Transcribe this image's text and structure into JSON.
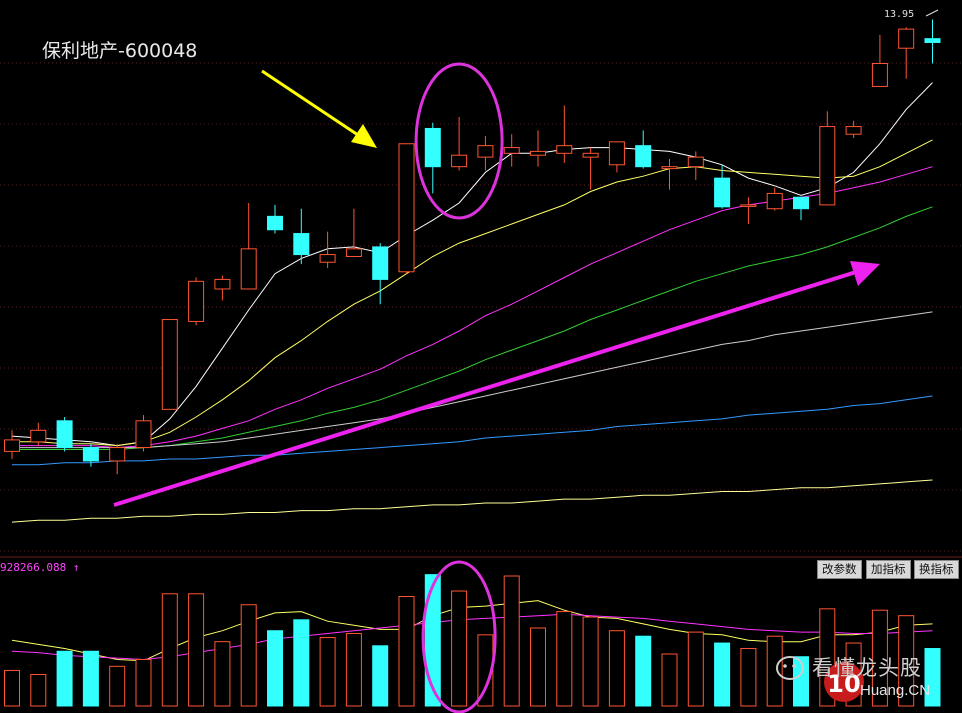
{
  "title": "保利地产-600048",
  "price_label": "13.95",
  "volume_label": "928266.088 ↑",
  "toolbar": [
    "改参数",
    "加指标",
    "换指标"
  ],
  "watermark": {
    "text": "看懂龙头股",
    "sub": "Huang.CN",
    "logo": "10"
  },
  "colors": {
    "up": "#ff5533",
    "down": "#33ffff",
    "ma5": "#ffffff",
    "ma10": "#ffff66",
    "ma20": "#ff33ff",
    "ma30": "#33cc33",
    "ma60": "#cccccc",
    "ma120": "#3399ff",
    "ma250": "#ffff99",
    "arrow_big": "#ee22ee",
    "arrow_yellow": "#ffff00",
    "circle": "#dd33dd",
    "grid": "#552222"
  },
  "chart_data": {
    "type": "candlestick",
    "title": "保利地产-600048",
    "ylim": [
      11.2,
      14.0
    ],
    "candles": [
      {
        "o": 11.69,
        "c": 11.75,
        "h": 11.8,
        "l": 11.65
      },
      {
        "o": 11.74,
        "c": 11.8,
        "h": 11.84,
        "l": 11.72
      },
      {
        "o": 11.85,
        "c": 11.71,
        "h": 11.87,
        "l": 11.69
      },
      {
        "o": 11.71,
        "c": 11.64,
        "h": 11.73,
        "l": 11.61
      },
      {
        "o": 11.64,
        "c": 11.71,
        "h": 11.73,
        "l": 11.57
      },
      {
        "o": 11.71,
        "c": 11.85,
        "h": 11.88,
        "l": 11.69
      },
      {
        "o": 11.91,
        "c": 12.38,
        "h": 12.38,
        "l": 11.91
      },
      {
        "o": 12.37,
        "c": 12.58,
        "h": 12.6,
        "l": 12.35
      },
      {
        "o": 12.54,
        "c": 12.59,
        "h": 12.61,
        "l": 12.48
      },
      {
        "o": 12.54,
        "c": 12.75,
        "h": 12.99,
        "l": 12.54
      },
      {
        "o": 12.92,
        "c": 12.85,
        "h": 12.98,
        "l": 12.83
      },
      {
        "o": 12.83,
        "c": 12.72,
        "h": 12.96,
        "l": 12.67
      },
      {
        "o": 12.68,
        "c": 12.72,
        "h": 12.84,
        "l": 12.65
      },
      {
        "o": 12.71,
        "c": 12.75,
        "h": 12.96,
        "l": 12.71
      },
      {
        "o": 12.76,
        "c": 12.59,
        "h": 12.78,
        "l": 12.46
      },
      {
        "o": 12.63,
        "c": 13.3,
        "h": 13.3,
        "l": 12.62
      },
      {
        "o": 13.38,
        "c": 13.18,
        "h": 13.41,
        "l": 13.04
      },
      {
        "o": 13.18,
        "c": 13.24,
        "h": 13.44,
        "l": 13.16
      },
      {
        "o": 13.23,
        "c": 13.29,
        "h": 13.34,
        "l": 13.16
      },
      {
        "o": 13.25,
        "c": 13.28,
        "h": 13.35,
        "l": 13.18
      },
      {
        "o": 13.24,
        "c": 13.26,
        "h": 13.37,
        "l": 13.18
      },
      {
        "o": 13.25,
        "c": 13.29,
        "h": 13.5,
        "l": 13.2
      },
      {
        "o": 13.23,
        "c": 13.25,
        "h": 13.28,
        "l": 13.06
      },
      {
        "o": 13.19,
        "c": 13.31,
        "h": 13.31,
        "l": 13.15
      },
      {
        "o": 13.29,
        "c": 13.18,
        "h": 13.37,
        "l": 13.17
      },
      {
        "o": 13.17,
        "c": 13.18,
        "h": 13.22,
        "l": 13.06
      },
      {
        "o": 13.18,
        "c": 13.23,
        "h": 13.26,
        "l": 13.11
      },
      {
        "o": 13.12,
        "c": 12.97,
        "h": 13.19,
        "l": 12.96
      },
      {
        "o": 12.98,
        "c": 12.98,
        "h": 13.02,
        "l": 12.88
      },
      {
        "o": 12.96,
        "c": 13.04,
        "h": 13.07,
        "l": 12.95
      },
      {
        "o": 13.02,
        "c": 12.96,
        "h": 13.02,
        "l": 12.9
      },
      {
        "o": 12.98,
        "c": 13.39,
        "h": 13.47,
        "l": 12.98
      },
      {
        "o": 13.35,
        "c": 13.39,
        "h": 13.42,
        "l": 13.33
      },
      {
        "o": 13.6,
        "c": 13.72,
        "h": 13.87,
        "l": 13.6
      },
      {
        "o": 13.8,
        "c": 13.9,
        "h": 13.91,
        "l": 13.64
      },
      {
        "o": 13.85,
        "c": 13.83,
        "h": 13.95,
        "l": 13.72
      }
    ],
    "ma_series": [
      {
        "values": [
          11.77,
          11.76,
          11.75,
          11.74,
          11.72,
          11.74,
          11.86,
          12.03,
          12.23,
          12.43,
          12.62,
          12.7,
          12.75,
          12.76,
          12.73,
          12.82,
          12.9,
          12.99,
          13.15,
          13.25,
          13.25,
          13.27,
          13.28,
          13.28,
          13.27,
          13.26,
          13.23,
          13.19,
          13.12,
          13.08,
          13.03,
          13.07,
          13.15,
          13.3,
          13.48,
          13.62
        ]
      },
      {
        "values": [
          11.74,
          11.74,
          11.73,
          11.73,
          11.72,
          11.74,
          11.79,
          11.87,
          11.96,
          12.06,
          12.18,
          12.27,
          12.37,
          12.46,
          12.53,
          12.62,
          12.71,
          12.78,
          12.83,
          12.88,
          12.93,
          12.98,
          13.05,
          13.1,
          13.13,
          13.17,
          13.18,
          13.16,
          13.15,
          13.14,
          13.13,
          13.12,
          13.13,
          13.18,
          13.25,
          13.32
        ]
      },
      {
        "values": [
          11.72,
          11.72,
          11.72,
          11.72,
          11.71,
          11.72,
          11.74,
          11.77,
          11.81,
          11.85,
          11.91,
          11.96,
          12.02,
          12.07,
          12.12,
          12.19,
          12.25,
          12.32,
          12.4,
          12.46,
          12.53,
          12.6,
          12.67,
          12.73,
          12.79,
          12.85,
          12.9,
          12.95,
          12.98,
          13.0,
          13.02,
          13.04,
          13.07,
          13.1,
          13.14,
          13.18
        ]
      },
      {
        "values": [
          11.7,
          11.7,
          11.7,
          11.7,
          11.7,
          11.71,
          11.72,
          11.74,
          11.76,
          11.79,
          11.82,
          11.85,
          11.89,
          11.92,
          11.96,
          12.01,
          12.06,
          12.11,
          12.17,
          12.22,
          12.27,
          12.32,
          12.38,
          12.43,
          12.48,
          12.53,
          12.58,
          12.62,
          12.66,
          12.69,
          12.72,
          12.76,
          12.81,
          12.86,
          12.92,
          12.97
        ]
      },
      {
        "values": [
          11.71,
          11.71,
          11.71,
          11.71,
          11.71,
          11.71,
          11.72,
          11.73,
          11.74,
          11.76,
          11.78,
          11.8,
          11.82,
          11.84,
          11.86,
          11.89,
          11.92,
          11.95,
          11.98,
          12.01,
          12.04,
          12.07,
          12.1,
          12.13,
          12.16,
          12.19,
          12.22,
          12.25,
          12.27,
          12.3,
          12.32,
          12.34,
          12.36,
          12.38,
          12.4,
          12.42
        ]
      },
      {
        "values": [
          11.62,
          11.62,
          11.63,
          11.63,
          11.64,
          11.64,
          11.65,
          11.65,
          11.66,
          11.67,
          11.67,
          11.68,
          11.69,
          11.7,
          11.71,
          11.72,
          11.73,
          11.74,
          11.76,
          11.77,
          11.78,
          11.79,
          11.8,
          11.82,
          11.83,
          11.84,
          11.85,
          11.86,
          11.88,
          11.89,
          11.9,
          11.91,
          11.93,
          11.94,
          11.96,
          11.98
        ]
      },
      {
        "values": [
          11.32,
          11.33,
          11.33,
          11.34,
          11.34,
          11.35,
          11.35,
          11.36,
          11.36,
          11.37,
          11.37,
          11.38,
          11.38,
          11.39,
          11.39,
          11.4,
          11.41,
          11.41,
          11.42,
          11.42,
          11.43,
          11.44,
          11.44,
          11.45,
          11.46,
          11.46,
          11.47,
          11.48,
          11.48,
          11.49,
          11.5,
          11.5,
          11.51,
          11.52,
          11.53,
          11.54
        ]
      }
    ],
    "volume": {
      "max": 950000,
      "values": [
        260000,
        230000,
        400000,
        400000,
        290000,
        340000,
        820000,
        820000,
        470000,
        740000,
        550000,
        630000,
        500000,
        530000,
        440000,
        800000,
        960000,
        840000,
        520000,
        950000,
        570000,
        690000,
        650000,
        550000,
        510000,
        380000,
        540000,
        460000,
        420000,
        510000,
        360000,
        710000,
        460000,
        700000,
        660000,
        420000
      ],
      "ma_series": [
        {
          "values": [
            480000,
            450000,
            420000,
            380000,
            340000,
            330000,
            420000,
            500000,
            550000,
            620000,
            680000,
            690000,
            620000,
            590000,
            560000,
            560000,
            660000,
            720000,
            730000,
            750000,
            770000,
            700000,
            650000,
            640000,
            600000,
            560000,
            530000,
            520000,
            480000,
            470000,
            470000,
            520000,
            520000,
            540000,
            590000,
            600000
          ]
        },
        {
          "values": [
            400000,
            390000,
            370000,
            360000,
            350000,
            340000,
            360000,
            390000,
            420000,
            450000,
            490000,
            510000,
            530000,
            550000,
            570000,
            590000,
            610000,
            630000,
            640000,
            650000,
            660000,
            670000,
            660000,
            650000,
            640000,
            620000,
            600000,
            580000,
            560000,
            550000,
            540000,
            540000,
            530000,
            530000,
            540000,
            550000
          ]
        }
      ]
    },
    "annotations": [
      {
        "type": "arrow",
        "direction": "down-right",
        "color": "yellow"
      },
      {
        "type": "arrow",
        "direction": "up-right",
        "color": "magenta"
      },
      {
        "type": "ellipse",
        "target_candles": [
          16,
          18
        ]
      },
      {
        "type": "ellipse",
        "target_volume": [
          16,
          18
        ]
      }
    ]
  }
}
